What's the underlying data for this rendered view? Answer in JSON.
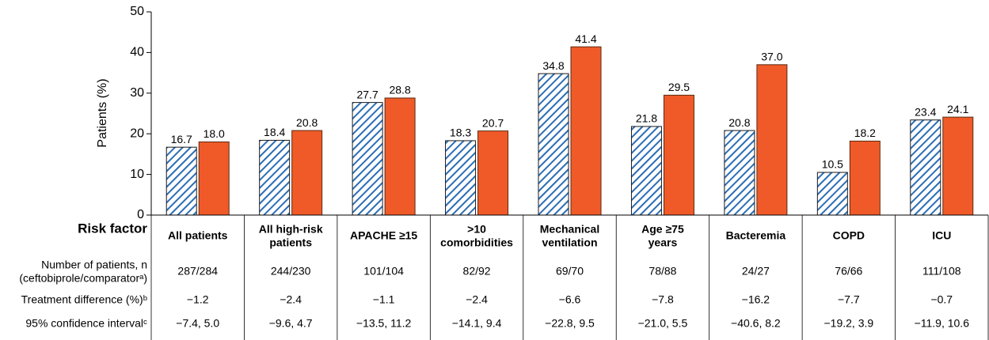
{
  "chart_data": {
    "type": "bar",
    "y_label": "Patients (%)",
    "row_header": "Risk factor",
    "categories": [
      "All patients",
      "All high-risk\npatients",
      "APACHE ≥15",
      ">10\ncomorbidities",
      "Mechanical\nventilation",
      "Age ≥75\nyears",
      "Bacteremia",
      "COPD",
      "ICU"
    ],
    "series": [
      {
        "color": "#2a6db5",
        "pattern": "hatch",
        "values": [
          16.7,
          18.4,
          27.7,
          18.3,
          34.8,
          21.8,
          20.8,
          10.5,
          23.4
        ],
        "value_labels": [
          "16.7",
          "18.4",
          "27.7",
          "18.3",
          "34.8",
          "21.8",
          "20.8",
          "10.5",
          "23.4"
        ]
      },
      {
        "color": "#f05a28",
        "pattern": "solid",
        "values": [
          18.0,
          20.8,
          28.8,
          20.7,
          41.4,
          29.5,
          37.0,
          18.2,
          24.1
        ],
        "value_labels": [
          "18.0",
          "20.8",
          "28.8",
          "20.7",
          "41.4",
          "29.5",
          "37.0",
          "18.2",
          "24.1"
        ]
      }
    ],
    "ylim": [
      0,
      50
    ],
    "yticks": [
      0,
      10,
      20,
      30,
      40,
      50
    ],
    "table": {
      "rows": [
        {
          "label": "Number of patients, n\n(ceftobiprole/comparatorᵃ)",
          "values": [
            "287/284",
            "244/230",
            "101/104",
            "82/92",
            "69/70",
            "78/88",
            "24/27",
            "76/66",
            "111/108"
          ]
        },
        {
          "label": "Treatment difference (%)ᵇ",
          "values": [
            "−1.2",
            "−2.4",
            "−1.1",
            "−2.4",
            "−6.6",
            "−7.8",
            "−16.2",
            "−7.7",
            "−0.7"
          ]
        },
        {
          "label": "95% confidence intervalᶜ",
          "values": [
            "−7.4, 5.0",
            "−9.6, 4.7",
            "−13.5, 11.2",
            "−14.1, 9.4",
            "−22.8, 9.5",
            "−21.0, 5.5",
            "−40.6, 8.2",
            "−19.2, 3.9",
            "−11.9, 10.6"
          ]
        }
      ]
    }
  }
}
